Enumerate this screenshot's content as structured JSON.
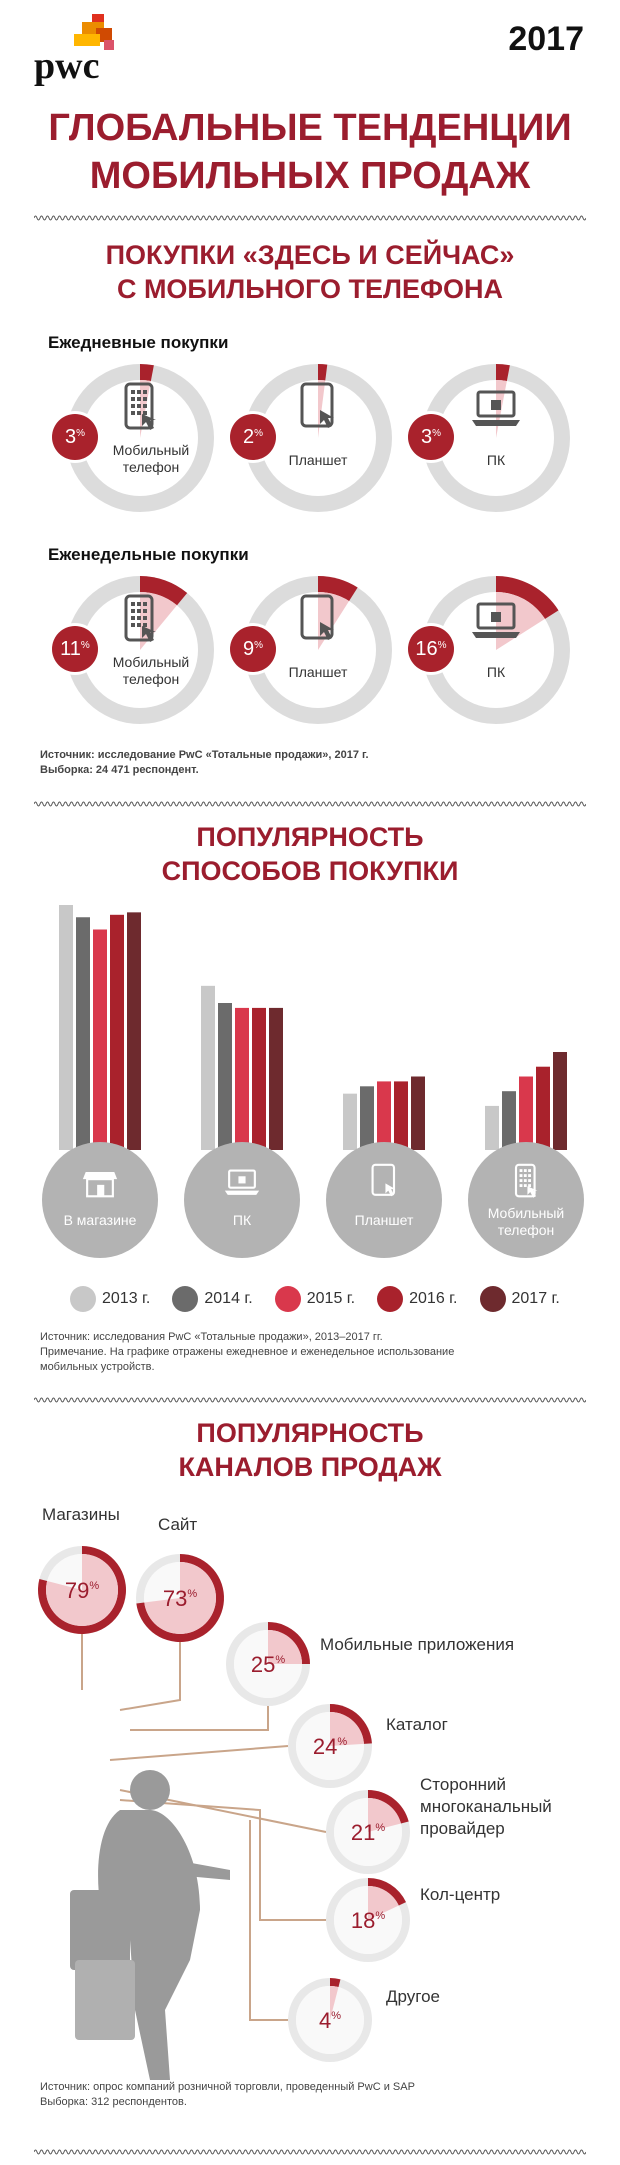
{
  "header": {
    "brand": "pwc",
    "year": "2017"
  },
  "title": {
    "line1": "ГЛОБАЛЬНЫЕ ТЕНДЕНЦИИ",
    "line2": "МОБИЛЬНЫХ ПРОДАЖ"
  },
  "colors": {
    "accent": "#9b1d2e",
    "red": "#a9222c",
    "grey": "#dcdcdc"
  },
  "section1": {
    "title_line1": "ПОКУПКИ «ЗДЕСЬ И СЕЙЧАС»",
    "title_line2": "С МОБИЛЬНОГО ТЕЛЕФОНА",
    "daily_label": "Ежедневные покупки",
    "weekly_label": "Еженедельные покупки",
    "daily": [
      {
        "value": 3,
        "pct": "3",
        "device": "Мобильный телефон",
        "icon": "mobile-phone-icon"
      },
      {
        "value": 2,
        "pct": "2",
        "device": "Планшет",
        "icon": "tablet-icon"
      },
      {
        "value": 3,
        "pct": "3",
        "device": "ПК",
        "icon": "laptop-icon"
      }
    ],
    "weekly": [
      {
        "value": 11,
        "pct": "11",
        "device": "Мобильный телефон",
        "icon": "mobile-phone-icon"
      },
      {
        "value": 9,
        "pct": "9",
        "device": "Планшет",
        "icon": "tablet-icon"
      },
      {
        "value": 16,
        "pct": "16",
        "device": "ПК",
        "icon": "laptop-icon"
      }
    ],
    "pct_sign": "%",
    "source_line1": "Источник: исследование PwC «Тотальные продажи», 2017 г.",
    "source_line2": "Выборка: 24 471 респондент."
  },
  "section2": {
    "title_line1": "ПОПУЛЯРНОСТЬ",
    "title_line2": "СПОСОБОВ ПОКУПКИ",
    "legend": [
      "2013 г.",
      "2014 г.",
      "2015 г.",
      "2016 г.",
      "2017 г."
    ],
    "series_colors": [
      "#c8c8c8",
      "#6b6b6b",
      "#d9384c",
      "#a9222c",
      "#6e2a2e"
    ],
    "groups": [
      {
        "name": "В магазине",
        "icon": "store-icon",
        "values": [
          100,
          95,
          90,
          96,
          97
        ]
      },
      {
        "name": "ПК",
        "icon": "laptop-icon",
        "values": [
          67,
          60,
          58,
          58,
          58
        ]
      },
      {
        "name": "Планшет",
        "icon": "tablet-icon",
        "values": [
          23,
          26,
          28,
          28,
          30
        ]
      },
      {
        "name": "Мобильный телефон",
        "icon": "mobile-phone-icon",
        "values": [
          18,
          24,
          30,
          34,
          40
        ]
      }
    ],
    "source_line1": "Источник: исследования PwC «Тотальные продажи», 2013–2017 гг.",
    "source_line2": "Примечание. На графике отражены ежедневное и еженедельное использование",
    "source_line3": "мобильных устройств."
  },
  "section3": {
    "title_line1": "ПОПУЛЯРНОСТЬ",
    "title_line2": "КАНАЛОВ ПРОДАЖ",
    "channels": [
      {
        "label": "Магазины",
        "value": 79,
        "pct": "79"
      },
      {
        "label": "Сайт",
        "value": 73,
        "pct": "73"
      },
      {
        "label": "Мобильные приложения",
        "value": 25,
        "pct": "25"
      },
      {
        "label": "Каталог",
        "value": 24,
        "pct": "24"
      },
      {
        "label_lines": [
          "Сторонний",
          "многоканальный",
          "провайдер"
        ],
        "value": 21,
        "pct": "21"
      },
      {
        "label": "Кол-центр",
        "value": 18,
        "pct": "18"
      },
      {
        "label": "Другое",
        "value": 4,
        "pct": "4"
      }
    ],
    "source_line1": "Источник: опрос компаний розничной торговли, проведенный PwC и SAP",
    "source_line2": "Выборка: 312   респондентов."
  }
}
